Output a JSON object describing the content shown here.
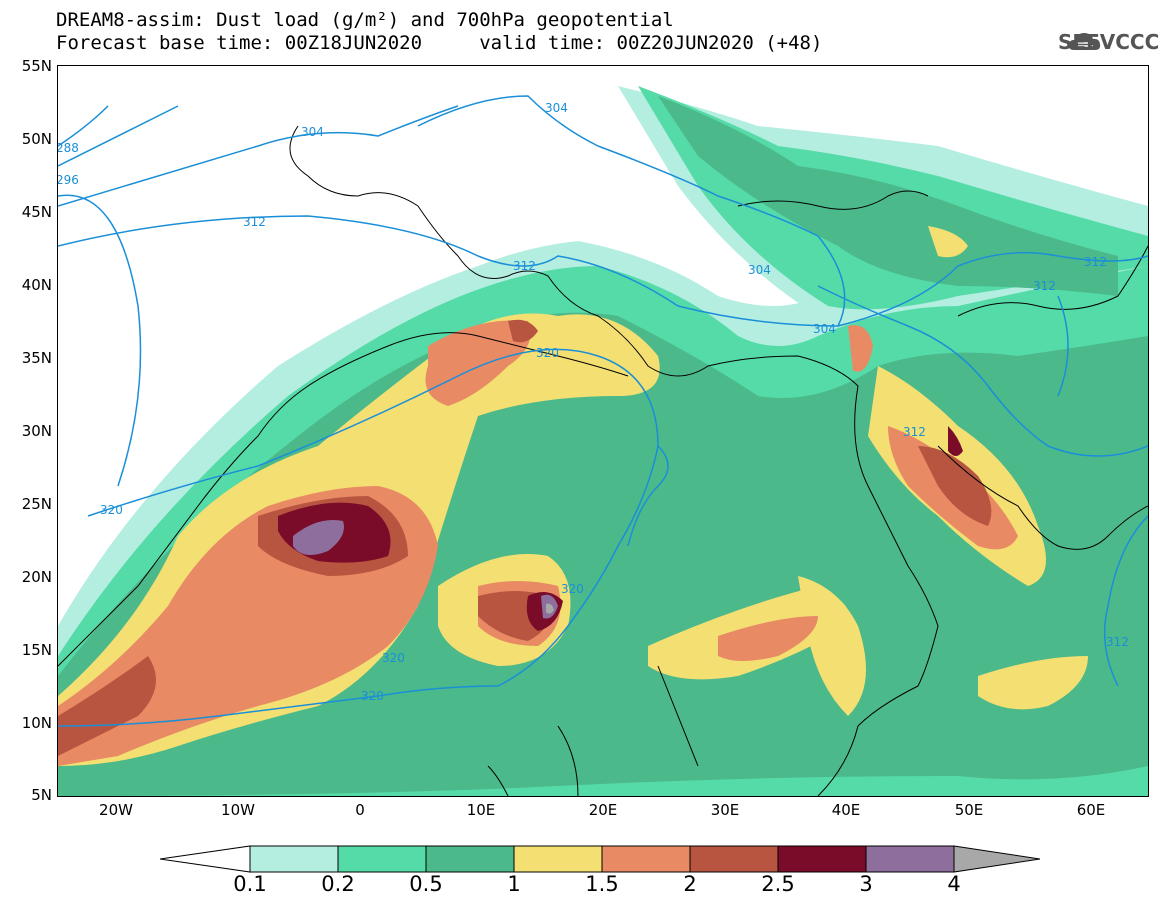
{
  "title_line1": "DREAM8-assim: Dust load (g/m²) and 700hPa geopotential",
  "title_line2": "Forecast base time: 00Z18JUN2020     valid time: 00Z20JUN2020 (+48)",
  "logo_text": "SEEVCCC",
  "lat_labels": [
    "55N",
    "50N",
    "45N",
    "40N",
    "35N",
    "30N",
    "25N",
    "20N",
    "15N",
    "10N",
    "5N"
  ],
  "lon_labels": [
    "20W",
    "10W",
    "0",
    "10E",
    "20E",
    "30E",
    "40E",
    "50E",
    "60E"
  ],
  "colorbar": {
    "levels": [
      "0.1",
      "0.2",
      "0.5",
      "1",
      "1.5",
      "2",
      "2.5",
      "3",
      "4"
    ],
    "colors": [
      "#b4eee0",
      "#55dba8",
      "#4cb98b",
      "#f4df72",
      "#e88a64",
      "#b85540",
      "#7a0c2a",
      "#8e6e9d",
      "#a8a8a8"
    ]
  },
  "contour_labels": [
    "304",
    "304",
    "304",
    "304",
    "312",
    "312",
    "312",
    "312",
    "312",
    "312",
    "320",
    "320",
    "320",
    "320",
    "320",
    "288",
    "296"
  ]
}
